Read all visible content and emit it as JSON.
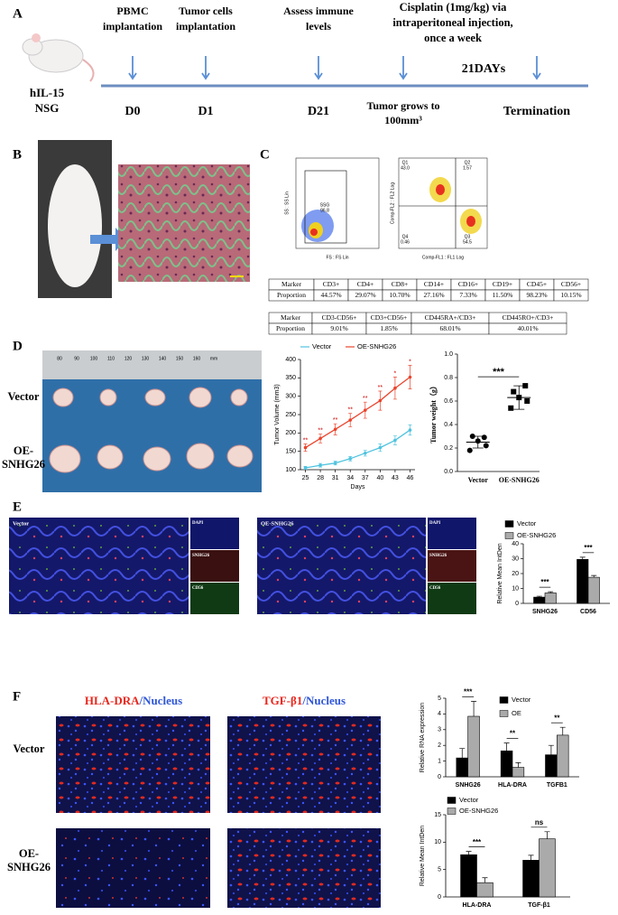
{
  "panel_labels": [
    "A",
    "B",
    "C",
    "D",
    "E",
    "F"
  ],
  "timeline": {
    "subject": [
      "hIL-15",
      "NSG"
    ],
    "events": [
      {
        "above": [
          "PBMC",
          "implantation"
        ],
        "below": [
          "D0"
        ]
      },
      {
        "above": [
          "Tumor cells",
          "implantation"
        ],
        "below": [
          "D1"
        ]
      },
      {
        "above": [
          "Assess immune",
          "levels"
        ],
        "below": [
          "D21"
        ]
      },
      {
        "below": [
          "Tumor grows to",
          "100mm³"
        ]
      },
      {
        "below": [
          "Termination"
        ]
      }
    ],
    "treatment": [
      "Cisplatin (1mg/kg) via",
      "intraperitoneal injection,",
      "once a week"
    ],
    "duration": "21DAYs"
  },
  "flow": {
    "plot1": {
      "x_label": "FS : FS Lin",
      "y_label": "SS : SS Lin",
      "gate": [
        "SSG",
        "96.8"
      ]
    },
    "plot2": {
      "x_label": "Comp-FL1 : FL1 Log",
      "y_label": "Comp-FL2 : FL2 Log",
      "quadrants": [
        {
          "name": "Q1",
          "value": "43.0"
        },
        {
          "name": "Q2",
          "value": "1.57"
        },
        {
          "name": "Q3",
          "value": "54.5"
        },
        {
          "name": "Q4",
          "value": "0.46"
        }
      ]
    }
  },
  "tables": [
    {
      "rows": [
        [
          "Marker",
          "CD3+",
          "CD4+",
          "CD8+",
          "CD14+",
          "CD16+",
          "CD19+",
          "CD45+",
          "CD56+"
        ],
        [
          "Proportion",
          "44.57%",
          "29.07%",
          "10.70%",
          "27.16%",
          "7.33%",
          "11.50%",
          "98.23%",
          "10.15%"
        ]
      ]
    },
    {
      "rows": [
        [
          "Marker",
          "CD3-CD56+",
          "CD3+CD56+",
          "CD445RA+/CD3+",
          "CD445RO+/CD3+"
        ],
        [
          "Proportion",
          "9.01%",
          "1.85%",
          "68.01%",
          "40.01%"
        ]
      ]
    }
  ],
  "photo": {
    "ruler": [
      "80",
      "90",
      "100",
      "110",
      "120",
      "130",
      "140",
      "150",
      "160",
      "mm"
    ],
    "rows": [
      [
        "Vector"
      ],
      [
        "OE-",
        "SNHG26"
      ]
    ]
  },
  "panel_e": {
    "images": [
      {
        "label": "Vector",
        "channels": [
          "DAPI",
          "SNHG26",
          "CD56"
        ]
      },
      {
        "label": "OE-SNHG26",
        "channels": [
          "DAPI",
          "SNHG26",
          "CD56"
        ]
      }
    ]
  },
  "panel_f": {
    "columns": [
      {
        "marker": "HLA-DRA",
        "counter": "/Nucleus"
      },
      {
        "marker": "TGF-β1",
        "counter": "/Nucleus"
      }
    ],
    "rows": [
      [
        "Vector"
      ],
      [
        "OE-",
        "SNHG26"
      ]
    ]
  },
  "chart_data": [
    {
      "type": "line",
      "xlabel": "Days",
      "ylabel": "Tumor Volume (mm3)",
      "x": [
        25,
        28,
        31,
        34,
        37,
        40,
        43,
        46
      ],
      "xlim": [
        24,
        47
      ],
      "xticks": [
        25,
        28,
        31,
        34,
        37,
        40,
        43,
        46
      ],
      "ylim": [
        100,
        400
      ],
      "yticks": [
        100,
        150,
        200,
        250,
        300,
        350,
        400
      ],
      "series": [
        {
          "name": "Vector",
          "color": "#4fc3df",
          "values": [
            105,
            112,
            118,
            130,
            145,
            160,
            180,
            208
          ],
          "errors": [
            4,
            5,
            5,
            6,
            8,
            10,
            12,
            14
          ]
        },
        {
          "name": "OE-SNHG26",
          "color": "#e9452d",
          "values": [
            160,
            185,
            210,
            235,
            262,
            288,
            322,
            352
          ],
          "errors": [
            10,
            12,
            15,
            18,
            22,
            26,
            30,
            32
          ]
        }
      ],
      "annotations": [
        "**",
        "**",
        "**",
        "**",
        "**",
        "**",
        "*",
        "*"
      ]
    },
    {
      "type": "dot",
      "ylabel": "Tumor weight（g）",
      "categories": [
        "Vector",
        "OE-SNHG26"
      ],
      "ylim": [
        0,
        1
      ],
      "yticks": [
        {
          "value": 0,
          "label": "0.0"
        },
        0.2,
        0.4,
        0.6,
        0.8,
        {
          "value": 1,
          "label": "1.0"
        }
      ],
      "points": [
        [
          0.18,
          0.22,
          0.26,
          0.3,
          0.29
        ],
        [
          0.54,
          0.6,
          0.63,
          0.68,
          0.73
        ]
      ],
      "means": [
        0.25,
        0.63
      ],
      "sd": [
        0.05,
        0.1
      ],
      "annotation": "***"
    },
    {
      "type": "bar",
      "ylabel": "Relative Mean IntDen",
      "categories": [
        "SNHG26",
        "CD56"
      ],
      "ylim": [
        0,
        40
      ],
      "yticks": [
        0,
        10,
        20,
        30,
        40
      ],
      "series": [
        {
          "name": "Vector",
          "color": "#000000",
          "values": [
            4.2,
            29.5
          ],
          "errors": [
            0.6,
            1.5
          ]
        },
        {
          "name": "OE-SNHG26",
          "color": "#aaaaaa",
          "values": [
            7,
            17.5
          ],
          "errors": [
            0.8,
            1.2
          ]
        }
      ],
      "annotations": [
        "***",
        "***"
      ]
    },
    {
      "type": "bar",
      "ylabel": "Relative RNA expression",
      "categories": [
        "SNHG26",
        "HLA-DRA",
        "TGFB1"
      ],
      "ylim": [
        0,
        5
      ],
      "yticks": [
        0,
        1,
        2,
        3,
        4,
        5
      ],
      "series": [
        {
          "name": "Vector",
          "color": "#000000",
          "values": [
            1.2,
            1.65,
            1.4
          ],
          "errors": [
            0.6,
            0.5,
            0.6
          ]
        },
        {
          "name": "OE",
          "color": "#aaaaaa",
          "values": [
            3.85,
            0.6,
            2.65
          ],
          "errors": [
            0.95,
            0.3,
            0.5
          ]
        }
      ],
      "annotations": [
        "***",
        "**",
        "**"
      ]
    },
    {
      "type": "bar",
      "ylabel": "Relative Mean IntDen",
      "categories": [
        "HLA-DRA",
        "TGF-β1"
      ],
      "ylim": [
        0,
        15
      ],
      "yticks": [
        0,
        5,
        10,
        15
      ],
      "series": [
        {
          "name": "Vector",
          "color": "#000000",
          "values": [
            7.7,
            6.7
          ],
          "errors": [
            0.6,
            0.9
          ]
        },
        {
          "name": "OE-SNHG26",
          "color": "#aaaaaa",
          "values": [
            2.6,
            10.6
          ],
          "errors": [
            0.9,
            1.3
          ]
        }
      ],
      "annotations": [
        "***",
        "ns"
      ]
    }
  ]
}
